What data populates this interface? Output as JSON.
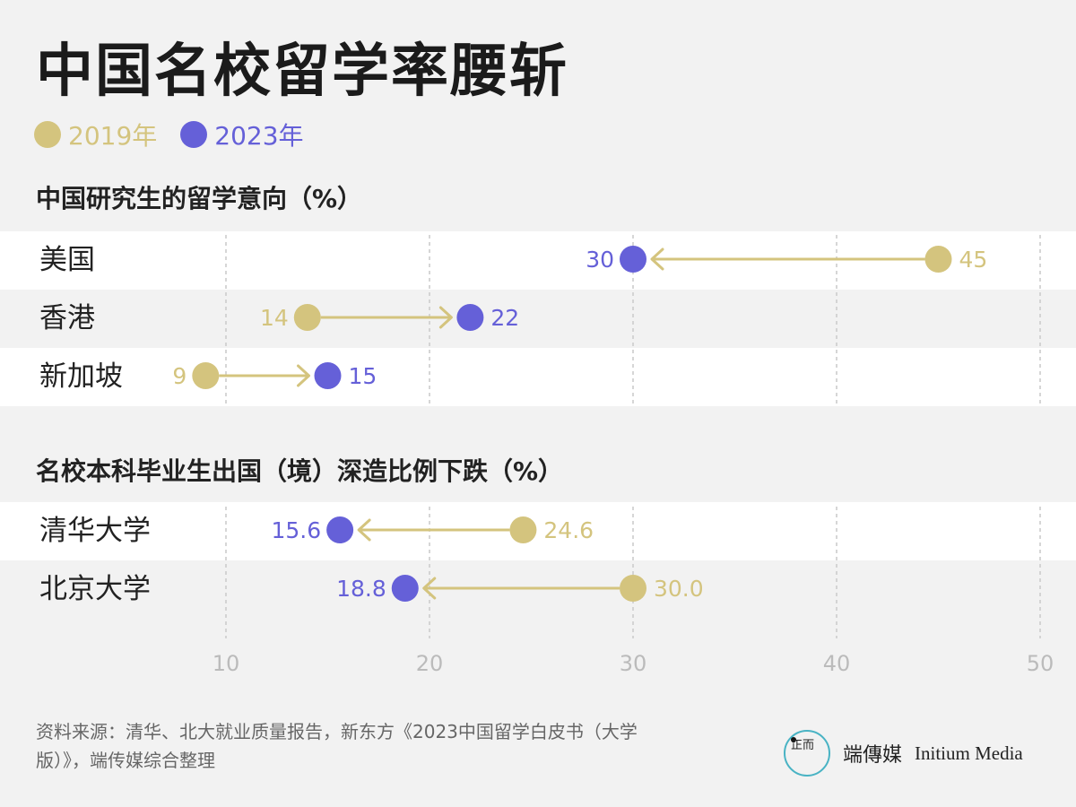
{
  "title": "中国名校留学率腰斩",
  "legend": [
    {
      "label": "2019年",
      "color": "#d4c47e"
    },
    {
      "label": "2023年",
      "color": "#6560d8"
    }
  ],
  "colors": {
    "c2019": "#d4c47e",
    "c2023": "#6560d8",
    "arrow": "#d4c47e"
  },
  "chart_data": [
    {
      "type": "dumbbell",
      "title": "中国研究生的留学意向（%）",
      "categories": [
        "美国",
        "香港",
        "新加坡"
      ],
      "series": [
        {
          "name": "2019年",
          "values": [
            45,
            14,
            9
          ]
        },
        {
          "name": "2023年",
          "values": [
            30,
            22,
            15
          ]
        }
      ],
      "value_labels": {
        "2019年": [
          "45",
          "14",
          "9"
        ],
        "2023年": [
          "30",
          "22",
          "15"
        ]
      },
      "xlim": [
        5,
        50
      ]
    },
    {
      "type": "dumbbell",
      "title": "名校本科毕业生出国（境）深造比例下跌（%）",
      "categories": [
        "清华大学",
        "北京大学"
      ],
      "series": [
        {
          "name": "2019年",
          "values": [
            24.6,
            30.0
          ]
        },
        {
          "name": "2023年",
          "values": [
            15.6,
            18.8
          ]
        }
      ],
      "value_labels": {
        "2019年": [
          "24.6",
          "30.0"
        ],
        "2023年": [
          "15.6",
          "18.8"
        ]
      },
      "xlim": [
        5,
        50
      ]
    }
  ],
  "x_ticks": [
    "10",
    "20",
    "30",
    "40",
    "50"
  ],
  "tick_values": [
    10,
    20,
    30,
    40,
    50
  ],
  "source": "资料来源：清华、北大就业质量报告，新东方《2023中国留学白皮书（大学版）》，端传媒综合整理",
  "brand": {
    "name_cn": "端傳媒",
    "name_en": "Initium Media",
    "logo_glyph": "正而"
  }
}
